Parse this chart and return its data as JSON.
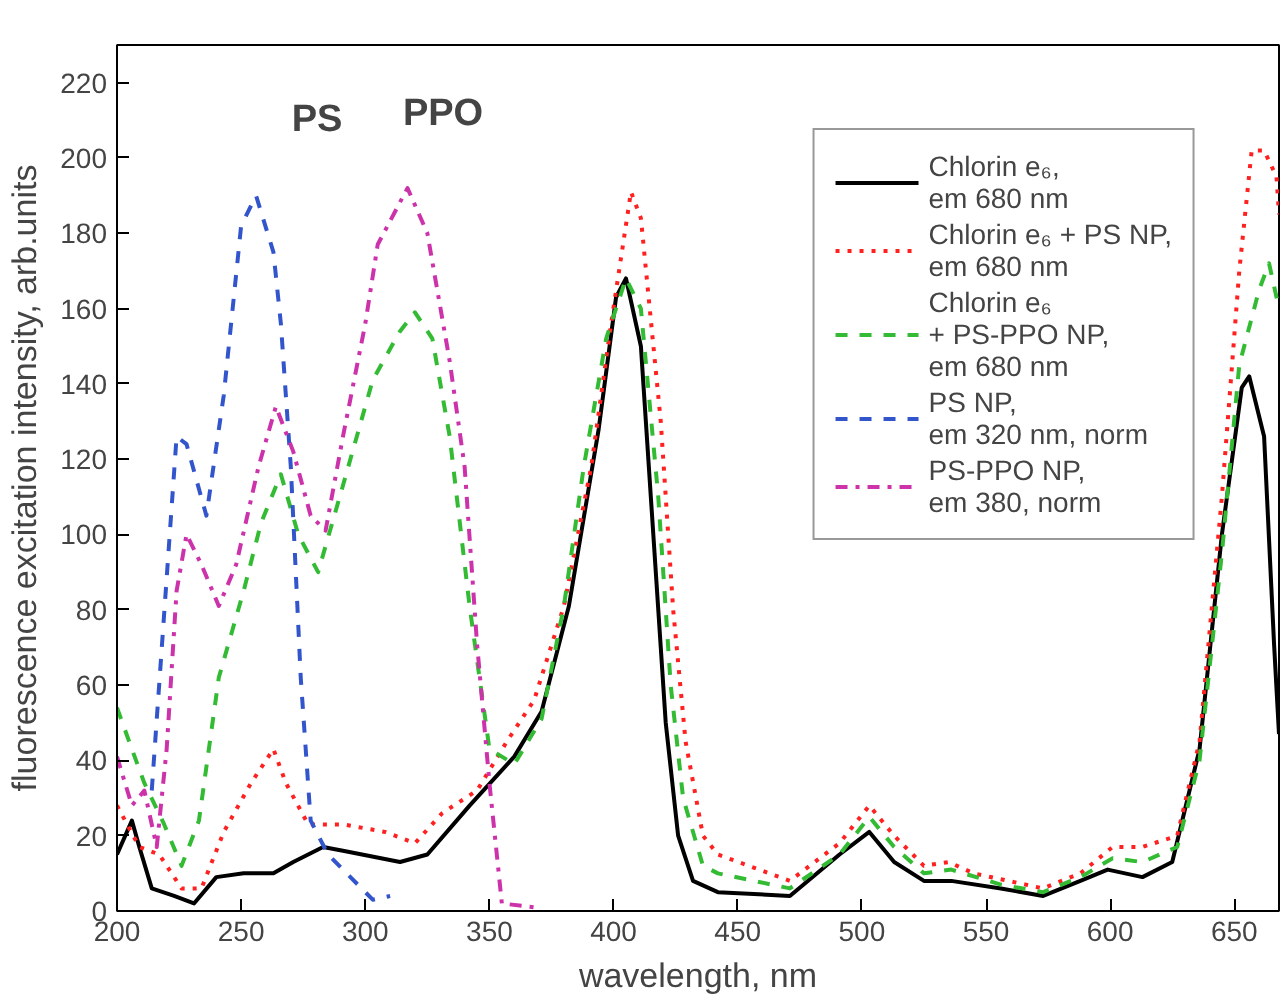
{
  "chart_data": {
    "type": "line",
    "xlabel": "wavelength, nm",
    "ylabel": "fluorescence excitation intensity, arb.units",
    "xlim": [
      200,
      668
    ],
    "ylim": [
      0,
      230
    ],
    "xticks": [
      200,
      250,
      300,
      350,
      400,
      450,
      500,
      550,
      600,
      650
    ],
    "yticks": [
      0,
      20,
      40,
      60,
      80,
      100,
      120,
      140,
      160,
      180,
      200,
      220
    ],
    "grid": false,
    "legend": "top right",
    "marker": "none",
    "annotations": [
      "PS",
      "PPO"
    ],
    "series": [
      {
        "name": "Chlorin e₆,\nem 680 nm",
        "color": "#000000",
        "line_style": "solid",
        "x": [
          200,
          206,
          209,
          214,
          223,
          231,
          240,
          251,
          263,
          271,
          283,
          291,
          314,
          325,
          342,
          360,
          371,
          382,
          394,
          401,
          405,
          411,
          416,
          421,
          426,
          432,
          442,
          471,
          491,
          503,
          513,
          525,
          536,
          556,
          573,
          588,
          599,
          613,
          625,
          636,
          645,
          653,
          656,
          662,
          666,
          668
        ],
        "values": [
          15,
          24,
          17,
          6,
          4,
          2,
          9,
          10,
          10,
          13,
          17,
          16,
          13,
          15,
          28,
          41,
          53,
          81,
          128,
          163,
          168,
          150,
          100,
          50,
          20,
          8,
          5,
          4,
          15,
          21,
          13,
          8,
          8,
          6,
          4,
          8,
          11,
          9,
          13,
          43,
          100,
          139,
          142,
          126,
          71,
          47
        ]
      },
      {
        "name": "Chlorin e₆ + PS NP,\nem 680 nm",
        "color": "#ff2020",
        "line_style": "dotted",
        "x": [
          200,
          209,
          217,
          226,
          234,
          243,
          254,
          263,
          268,
          277,
          291,
          308,
          320,
          331,
          345,
          357,
          368,
          380,
          391,
          399,
          407,
          411,
          419,
          424,
          429,
          436,
          442,
          471,
          491,
          503,
          513,
          525,
          535,
          545,
          573,
          588,
          601,
          613,
          627,
          636,
          645,
          652,
          657,
          662,
          667,
          668
        ],
        "values": [
          28,
          17,
          15,
          6,
          6,
          21,
          34,
          43,
          34,
          23,
          23,
          21,
          18,
          26,
          32,
          45,
          56,
          81,
          118,
          156,
          191,
          184,
          130,
          80,
          45,
          20,
          15,
          8,
          18,
          28,
          20,
          12,
          13,
          10,
          6,
          10,
          17,
          17,
          20,
          45,
          110,
          170,
          202,
          202,
          195,
          185
        ]
      },
      {
        "name": "Chlorin e₆\n+ PS-PPO NP,\nem 680 nm",
        "color": "#33bb33",
        "line_style": "dashed",
        "x": [
          200,
          206,
          211,
          219,
          226,
          233,
          241,
          251,
          258,
          266,
          273,
          281,
          291,
          303,
          314,
          320,
          327,
          334,
          342,
          350,
          360,
          371,
          380,
          388,
          397,
          405,
          411,
          418,
          423,
          428,
          436,
          442,
          471,
          491,
          503,
          513,
          525,
          536,
          556,
          573,
          588,
          601,
          613,
          627,
          636,
          645,
          652,
          660,
          664,
          668
        ],
        "values": [
          54,
          43,
          34,
          23,
          12,
          24,
          62,
          85,
          103,
          116,
          100,
          90,
          113,
          141,
          154,
          159,
          152,
          126,
          81,
          43,
          39,
          51,
          81,
          118,
          152,
          168,
          160,
          110,
          60,
          30,
          12,
          10,
          6,
          15,
          25,
          17,
          10,
          11,
          7,
          5,
          9,
          14,
          13,
          17,
          40,
          95,
          145,
          165,
          172,
          160
        ]
      },
      {
        "name": "PS NP,\nem 320 nm, norm",
        "color": "#3355cc",
        "line_style": "dashed",
        "x": [
          214,
          224,
          228,
          236,
          243,
          250,
          256,
          263,
          266,
          270,
          274,
          278,
          285,
          294,
          303,
          310
        ],
        "values": [
          32,
          126,
          124,
          105,
          137,
          182,
          190,
          175,
          156,
          118,
          62,
          24,
          15,
          9,
          3,
          4
        ]
      },
      {
        "name": "PS-PPO NP,\nem 380, norm",
        "color": "#cc33aa",
        "line_style": "dashdot",
        "x": [
          200,
          206,
          211,
          216,
          220,
          224,
          228,
          234,
          241,
          248,
          257,
          264,
          271,
          278,
          284,
          291,
          300,
          305,
          317,
          325,
          334,
          340,
          345,
          350,
          355,
          368
        ],
        "values": [
          41,
          28,
          32,
          17,
          43,
          85,
          100,
          92,
          81,
          92,
          118,
          134,
          122,
          105,
          101,
          126,
          156,
          177,
          192,
          180,
          146,
          118,
          71,
          34,
          2,
          1
        ]
      }
    ]
  }
}
